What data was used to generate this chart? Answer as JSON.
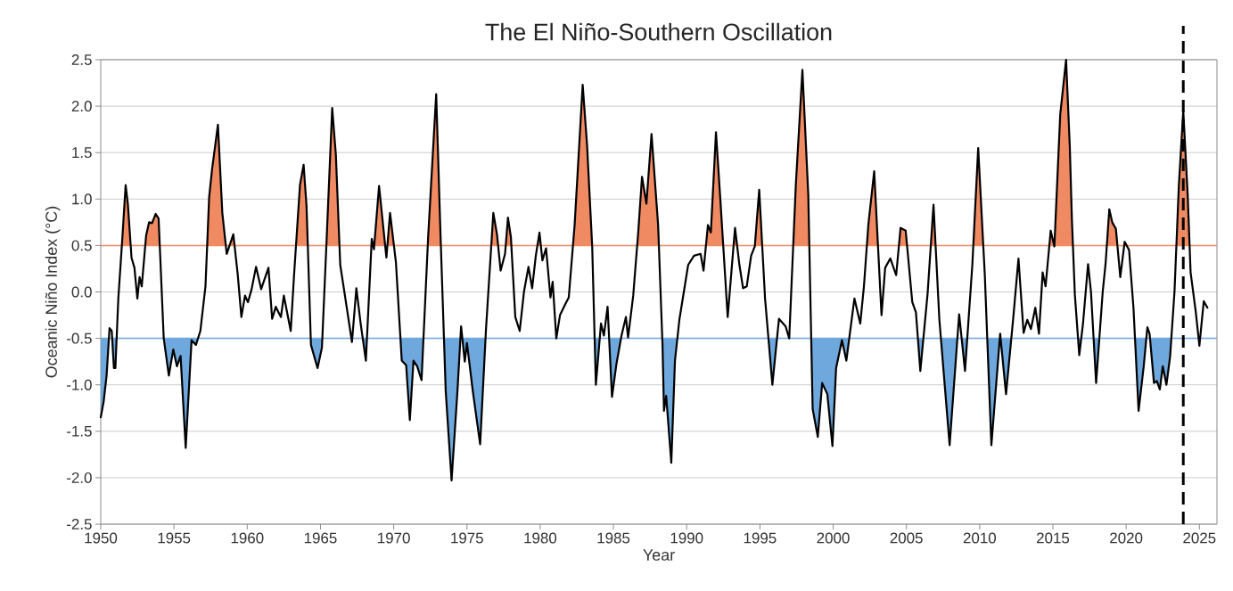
{
  "chart_data": {
    "type": "line",
    "title": "The El Niño-Southern Oscillation",
    "xlabel": "Year",
    "ylabel": "Oceanic Niño Index (°C)",
    "xlim": [
      1950,
      2026.2
    ],
    "ylim": [
      -2.5,
      2.5
    ],
    "xticks": [
      1950,
      1955,
      1960,
      1965,
      1970,
      1975,
      1980,
      1985,
      1990,
      1995,
      2000,
      2005,
      2010,
      2015,
      2020,
      2025
    ],
    "yticks": [
      -2.5,
      {
        "value": -2,
        "label": "-2.0"
      },
      -1.5,
      {
        "value": -1,
        "label": "-1.0"
      },
      -0.5,
      {
        "value": 0,
        "label": "0.0"
      },
      0.5,
      {
        "value": 1,
        "label": "1.0"
      },
      1.5,
      {
        "value": 2,
        "label": "2.0"
      },
      2.5
    ],
    "grid": "y",
    "series": [
      {
        "color": "#000000",
        "x": [
          1950.0,
          1950.2,
          1950.4,
          1950.6,
          1950.75,
          1950.9,
          1951.0,
          1951.2,
          1951.45,
          1951.7,
          1951.85,
          1952.1,
          1952.3,
          1952.5,
          1952.65,
          1952.8,
          1953.1,
          1953.3,
          1953.5,
          1953.75,
          1953.95,
          1954.3,
          1954.65,
          1954.95,
          1955.2,
          1955.45,
          1955.8,
          1956.2,
          1956.5,
          1956.8,
          1957.15,
          1957.4,
          1957.6,
          1958.0,
          1958.3,
          1958.6,
          1959.05,
          1959.35,
          1959.6,
          1959.85,
          1960.05,
          1960.3,
          1960.6,
          1960.95,
          1961.45,
          1961.7,
          1961.95,
          1962.3,
          1962.5,
          1962.97,
          1963.2,
          1963.6,
          1963.85,
          1964.05,
          1964.35,
          1964.8,
          1965.1,
          1965.4,
          1965.8,
          1966.05,
          1966.35,
          1966.7,
          1967.15,
          1967.45,
          1967.75,
          1968.1,
          1968.5,
          1968.65,
          1969.0,
          1969.5,
          1969.75,
          1970.15,
          1970.55,
          1970.85,
          1971.1,
          1971.35,
          1971.6,
          1971.9,
          1972.35,
          1972.9,
          1973.2,
          1973.55,
          1973.95,
          1974.35,
          1974.6,
          1974.85,
          1975.0,
          1975.4,
          1975.9,
          1976.3,
          1976.8,
          1977.05,
          1977.3,
          1977.6,
          1977.8,
          1978.0,
          1978.3,
          1978.6,
          1978.9,
          1979.2,
          1979.45,
          1979.7,
          1979.95,
          1980.15,
          1980.4,
          1980.7,
          1980.85,
          1981.1,
          1981.35,
          1981.75,
          1981.95,
          1982.35,
          1982.9,
          1983.2,
          1983.55,
          1983.8,
          1984.15,
          1984.35,
          1984.6,
          1984.9,
          1985.2,
          1985.55,
          1985.85,
          1986.0,
          1986.35,
          1986.7,
          1986.95,
          1987.25,
          1987.6,
          1988.05,
          1988.35,
          1988.45,
          1988.6,
          1988.95,
          1989.2,
          1989.5,
          1990.1,
          1990.5,
          1990.95,
          1991.15,
          1991.45,
          1991.65,
          1992.0,
          1992.3,
          1992.8,
          1993.3,
          1993.6,
          1993.85,
          1994.1,
          1994.4,
          1994.65,
          1994.95,
          1995.35,
          1995.85,
          1996.3,
          1996.75,
          1997.0,
          1997.45,
          1997.9,
          1998.3,
          1998.6,
          1998.95,
          1999.25,
          1999.6,
          1999.95,
          2000.2,
          2000.6,
          2000.9,
          2001.45,
          2001.85,
          2002.1,
          2002.4,
          2002.8,
          2003.3,
          2003.55,
          2003.9,
          2004.3,
          2004.6,
          2004.95,
          2005.4,
          2005.65,
          2005.95,
          2006.45,
          2006.85,
          2007.25,
          2007.95,
          2008.6,
          2009.0,
          2009.5,
          2009.9,
          2010.35,
          2010.8,
          2011.4,
          2011.8,
          2012.3,
          2012.65,
          2013.0,
          2013.25,
          2013.5,
          2013.8,
          2014.05,
          2014.3,
          2014.5,
          2014.85,
          2015.1,
          2015.5,
          2015.9,
          2016.15,
          2016.3,
          2016.5,
          2016.8,
          2017.05,
          2017.4,
          2017.6,
          2017.95,
          2018.4,
          2018.6,
          2018.85,
          2019.05,
          2019.3,
          2019.6,
          2019.9,
          2020.2,
          2020.5,
          2020.85,
          2021.2,
          2021.45,
          2021.6,
          2021.9,
          2022.1,
          2022.3,
          2022.5,
          2022.75,
          2023.0,
          2023.3,
          2023.6,
          2023.9,
          2024.2,
          2024.4,
          2024.75,
          2025.0,
          2025.3,
          2025.55
        ],
        "values": [
          -1.35,
          -1.18,
          -0.9,
          -0.39,
          -0.42,
          -0.82,
          -0.82,
          -0.07,
          0.52,
          1.15,
          0.95,
          0.37,
          0.26,
          -0.07,
          0.16,
          0.06,
          0.61,
          0.75,
          0.74,
          0.84,
          0.79,
          -0.5,
          -0.9,
          -0.62,
          -0.8,
          -0.69,
          -1.68,
          -0.52,
          -0.57,
          -0.42,
          0.06,
          1.02,
          1.32,
          1.8,
          0.85,
          0.41,
          0.62,
          0.19,
          -0.27,
          -0.04,
          -0.11,
          0.03,
          0.27,
          0.03,
          0.26,
          -0.29,
          -0.16,
          -0.27,
          -0.04,
          -0.42,
          0.19,
          1.15,
          1.37,
          0.92,
          -0.57,
          -0.82,
          -0.6,
          0.49,
          1.98,
          1.48,
          0.29,
          -0.07,
          -0.54,
          0.04,
          -0.35,
          -0.74,
          0.57,
          0.46,
          1.14,
          0.37,
          0.85,
          0.32,
          -0.74,
          -0.79,
          -1.38,
          -0.74,
          -0.8,
          -0.95,
          0.59,
          2.13,
          0.59,
          -1.07,
          -2.03,
          -1.07,
          -0.37,
          -0.75,
          -0.55,
          -1.07,
          -1.64,
          -0.4,
          0.85,
          0.62,
          0.23,
          0.41,
          0.8,
          0.59,
          -0.27,
          -0.42,
          0.01,
          0.27,
          0.04,
          0.39,
          0.64,
          0.34,
          0.47,
          -0.06,
          0.11,
          -0.5,
          -0.25,
          -0.12,
          -0.06,
          0.72,
          2.23,
          1.58,
          0.49,
          -1.0,
          -0.34,
          -0.47,
          -0.16,
          -1.13,
          -0.78,
          -0.47,
          -0.27,
          -0.49,
          -0.04,
          0.66,
          1.24,
          0.95,
          1.7,
          0.72,
          -0.57,
          -1.28,
          -1.12,
          -1.84,
          -0.74,
          -0.3,
          0.29,
          0.39,
          0.41,
          0.23,
          0.72,
          0.64,
          1.72,
          0.99,
          -0.27,
          0.69,
          0.29,
          0.04,
          0.06,
          0.39,
          0.49,
          1.1,
          -0.07,
          -1.0,
          -0.29,
          -0.37,
          -0.5,
          1.15,
          2.39,
          1.05,
          -1.26,
          -1.56,
          -0.98,
          -1.1,
          -1.66,
          -0.82,
          -0.52,
          -0.74,
          -0.07,
          -0.34,
          0.06,
          0.72,
          1.3,
          -0.25,
          0.26,
          0.36,
          0.18,
          0.69,
          0.66,
          -0.11,
          -0.22,
          -0.85,
          -0.01,
          0.94,
          -0.3,
          -1.65,
          -0.24,
          -0.85,
          0.29,
          1.55,
          0.19,
          -1.65,
          -0.45,
          -1.1,
          -0.27,
          0.36,
          -0.44,
          -0.3,
          -0.4,
          -0.17,
          -0.45,
          0.21,
          0.06,
          0.66,
          0.49,
          1.91,
          2.5,
          1.58,
          0.77,
          -0.03,
          -0.68,
          -0.35,
          0.3,
          0.0,
          -0.98,
          0.0,
          0.31,
          0.89,
          0.75,
          0.68,
          0.16,
          0.54,
          0.45,
          -0.17,
          -1.28,
          -0.8,
          -0.38,
          -0.45,
          -0.98,
          -0.96,
          -1.05,
          -0.8,
          -1.0,
          -0.7,
          0.0,
          1.15,
          1.95,
          1.05,
          0.21,
          -0.21,
          -0.58,
          -0.1,
          -0.17
        ]
      }
    ],
    "ref_lines": [
      {
        "axis": "y",
        "value": 0.5,
        "color": "#ef8a62"
      },
      {
        "axis": "y",
        "value": -0.5,
        "color": "#6fa8dc"
      },
      {
        "axis": "x",
        "value": 2023.9,
        "color": "#000000",
        "line_style": "dashed"
      }
    ]
  }
}
